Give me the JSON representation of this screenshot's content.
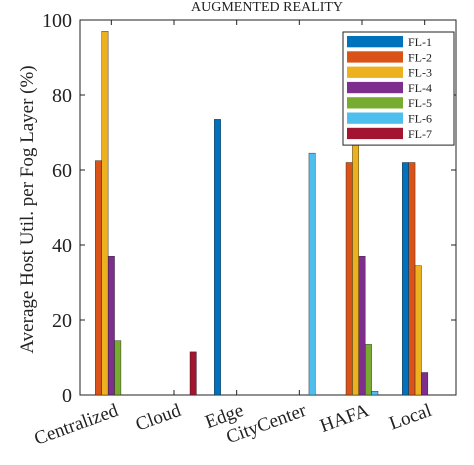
{
  "chart_data": {
    "type": "bar",
    "title": "AUGMENTED REALITY",
    "xlabel": "",
    "ylabel": "Average Host Util. per Fog Layer (%)",
    "ylim": [
      0,
      100
    ],
    "yticks": [
      0,
      20,
      40,
      60,
      80,
      100
    ],
    "grid": false,
    "legend_position": "top-right",
    "categories": [
      "Centralized",
      "Cloud",
      "Edge",
      "CityCenter",
      "HAFA",
      "Local"
    ],
    "series": [
      {
        "name": "FL-1",
        "color": "#0072BD",
        "values": [
          0,
          0,
          73.5,
          0,
          0,
          62
        ]
      },
      {
        "name": "FL-2",
        "color": "#D95319",
        "values": [
          62.5,
          0,
          0,
          0,
          62,
          62
        ]
      },
      {
        "name": "FL-3",
        "color": "#EDB120",
        "values": [
          97,
          0,
          0,
          0,
          96.5,
          34.5
        ]
      },
      {
        "name": "FL-4",
        "color": "#7E2F8E",
        "values": [
          37,
          0,
          0,
          0,
          37,
          6
        ]
      },
      {
        "name": "FL-5",
        "color": "#77AC30",
        "values": [
          14.5,
          0,
          0,
          0,
          13.5,
          0
        ]
      },
      {
        "name": "FL-6",
        "color": "#4DBEEE",
        "values": [
          0,
          0,
          0,
          64.5,
          1,
          0
        ]
      },
      {
        "name": "FL-7",
        "color": "#A2142F",
        "values": [
          0,
          11.5,
          0,
          0,
          0,
          0
        ]
      }
    ]
  }
}
